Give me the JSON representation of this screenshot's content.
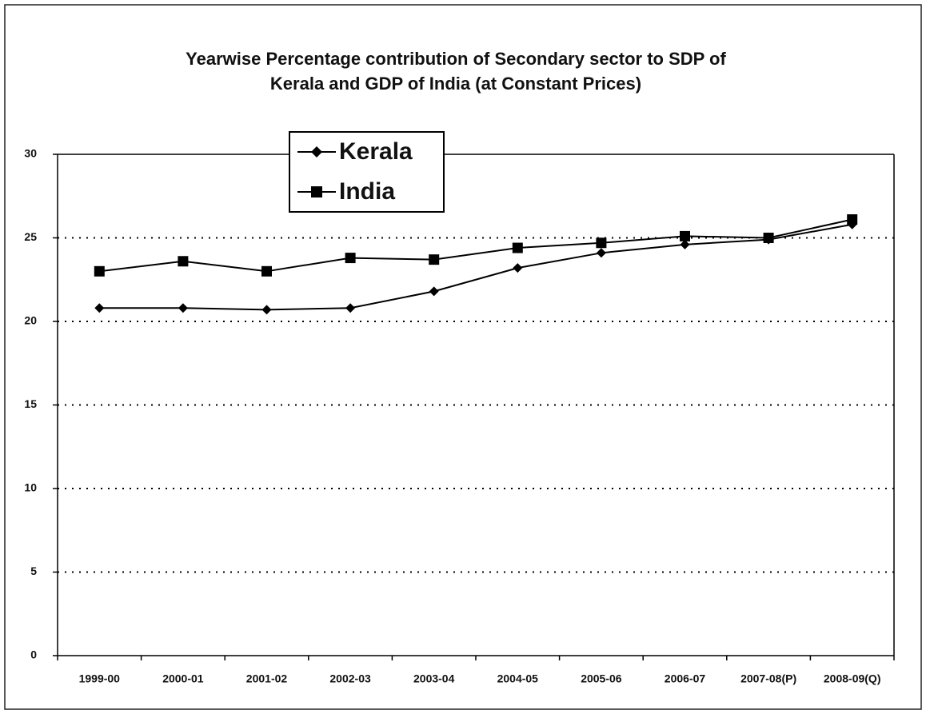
{
  "chart_data": {
    "type": "line",
    "title": [
      "Yearwise Percentage contribution of Secondary sector to SDP of",
      "Kerala and GDP of India (at Constant Prices)"
    ],
    "categories": [
      "1999-00",
      "2000-01",
      "2001-02",
      "2002-03",
      "2003-04",
      "2004-05",
      "2005-06",
      "2006-07",
      "2007-08(P)",
      "2008-09(Q)"
    ],
    "series": [
      {
        "name": "Kerala",
        "color": "#000000",
        "marker": "diamond",
        "values": [
          20.8,
          20.8,
          20.7,
          20.8,
          21.8,
          23.2,
          24.1,
          24.6,
          24.9,
          25.8
        ]
      },
      {
        "name": "India",
        "color": "#000000",
        "marker": "square",
        "values": [
          23.0,
          23.6,
          23.0,
          23.8,
          23.7,
          24.4,
          24.7,
          25.1,
          25.0,
          26.1
        ]
      }
    ],
    "ylim": [
      0,
      30
    ],
    "yticks": [
      0,
      5,
      10,
      15,
      20,
      25,
      30
    ],
    "grid": true
  }
}
